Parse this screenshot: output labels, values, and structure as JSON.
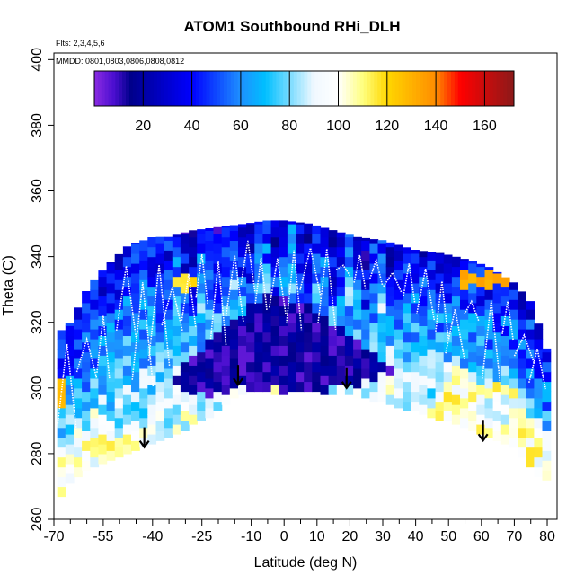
{
  "chart_data": {
    "type": "heatmap",
    "title": "ATOM1 Southbound RHi_DLH",
    "subtitle_flights": "Flts: 2,3,4,5,6",
    "subtitle_dates": "MMDD: 0801,0803,0806,0808,0812",
    "xlabel": "Latitude (deg N)",
    "ylabel": "Theta (C)",
    "xlim": [
      -70,
      83
    ],
    "ylim": [
      260,
      402
    ],
    "x_major_ticks": [
      -70,
      -55,
      -40,
      -25,
      -10,
      0,
      10,
      20,
      30,
      40,
      50,
      60,
      70,
      80
    ],
    "x_major_tick_labels": [
      "-70",
      "-55",
      "-40",
      "-25",
      "-10",
      "0",
      "10",
      "20",
      "30",
      "40",
      "50",
      "60",
      "70",
      "80"
    ],
    "x_minor_ticks": [
      -65,
      -60,
      -50,
      -45,
      -35,
      -30,
      -20,
      -15,
      -5,
      5,
      15,
      25,
      35,
      45,
      55,
      65,
      75,
      80
    ],
    "y_ticks": [
      260,
      280,
      300,
      320,
      340,
      360,
      380,
      400
    ],
    "y_tick_labels": [
      "260",
      "280",
      "300",
      "320",
      "340",
      "360",
      "380",
      "400"
    ],
    "colorbar": {
      "range": [
        0,
        172
      ],
      "ticks": [
        20,
        40,
        60,
        80,
        100,
        120,
        140,
        160
      ],
      "tick_labels": [
        "20",
        "40",
        "60",
        "80",
        "100",
        "120",
        "140",
        "160"
      ],
      "color_stops": [
        {
          "value": 0,
          "color": "#8a2be2"
        },
        {
          "value": 8,
          "color": "#4b0fd0"
        },
        {
          "value": 15,
          "color": "#00008b"
        },
        {
          "value": 40,
          "color": "#0000ff"
        },
        {
          "value": 60,
          "color": "#1e90ff"
        },
        {
          "value": 70,
          "color": "#00bfff"
        },
        {
          "value": 90,
          "color": "#f0f8ff"
        },
        {
          "value": 100,
          "color": "#ffffff"
        },
        {
          "value": 110,
          "color": "#ffff80"
        },
        {
          "value": 120,
          "color": "#ffd700"
        },
        {
          "value": 140,
          "color": "#ff8c00"
        },
        {
          "value": 150,
          "color": "#ff0000"
        },
        {
          "value": 172,
          "color": "#8b1a1a"
        }
      ]
    },
    "tropopause_arrows": [
      {
        "lat": -42.5,
        "theta": 282
      },
      {
        "lat": -14,
        "theta": 301
      },
      {
        "lat": 19,
        "theta": 300
      },
      {
        "lat": 60.5,
        "theta": 284
      }
    ],
    "data_domain": {
      "top_envelope": [
        [
          -69,
          317
        ],
        [
          -67,
          318
        ],
        [
          -65,
          320
        ],
        [
          -60,
          330
        ],
        [
          -56,
          335
        ],
        [
          -48,
          343
        ],
        [
          -40,
          346
        ],
        [
          -35,
          346
        ],
        [
          -28,
          348
        ],
        [
          -20,
          349
        ],
        [
          -12,
          350
        ],
        [
          -5,
          351
        ],
        [
          0,
          351
        ],
        [
          8,
          350
        ],
        [
          15,
          348
        ],
        [
          22,
          346
        ],
        [
          30,
          345
        ],
        [
          40,
          342
        ],
        [
          48,
          341
        ],
        [
          56,
          339
        ],
        [
          62,
          337
        ],
        [
          70,
          332
        ],
        [
          76,
          325
        ],
        [
          79,
          312
        ]
      ],
      "bottom_envelope": [
        [
          -69,
          266
        ],
        [
          -65,
          272
        ],
        [
          -60,
          276
        ],
        [
          -50,
          280
        ],
        [
          -40,
          284
        ],
        [
          -30,
          288
        ],
        [
          -22,
          292
        ],
        [
          -15,
          298
        ],
        [
          -10,
          300
        ],
        [
          -5,
          299
        ],
        [
          0,
          298
        ],
        [
          4,
          300
        ],
        [
          10,
          299
        ],
        [
          20,
          298
        ],
        [
          30,
          296
        ],
        [
          40,
          293
        ],
        [
          50,
          290
        ],
        [
          60,
          286
        ],
        [
          70,
          282
        ],
        [
          76,
          275
        ],
        [
          79,
          272
        ]
      ],
      "dark_core": [
        [
          -35,
          302
        ],
        [
          -25,
          312
        ],
        [
          -15,
          322
        ],
        [
          -5,
          328
        ],
        [
          5,
          326
        ],
        [
          15,
          320
        ],
        [
          25,
          312
        ],
        [
          33,
          305
        ],
        [
          20,
          300
        ],
        [
          5,
          299
        ],
        [
          -10,
          300
        ],
        [
          -25,
          298
        ]
      ],
      "yellow_patches": [
        {
          "lat": [
            -60,
            -45
          ],
          "theta": [
            280,
            285
          ],
          "rhi": 110
        },
        {
          "lat": [
            -35,
            -27
          ],
          "theta": [
            330,
            334
          ],
          "rhi": 120
        },
        {
          "lat": [
            53,
            68
          ],
          "theta": [
            331,
            335
          ],
          "rhi": 130
        },
        {
          "lat": [
            58,
            70
          ],
          "theta": [
            298,
            301
          ],
          "rhi": 112
        },
        {
          "lat": [
            -69,
            -66
          ],
          "theta": [
            295,
            302
          ],
          "rhi": 125
        }
      ]
    },
    "flight_track_lats": [
      -66,
      -60,
      -55,
      -48,
      -43,
      -38,
      -34,
      -29,
      -25,
      -20,
      -15,
      -11,
      -7,
      -2,
      3,
      8,
      13,
      18,
      23,
      28,
      33,
      38,
      43,
      48,
      52,
      57,
      63,
      68,
      73,
      77
    ]
  }
}
